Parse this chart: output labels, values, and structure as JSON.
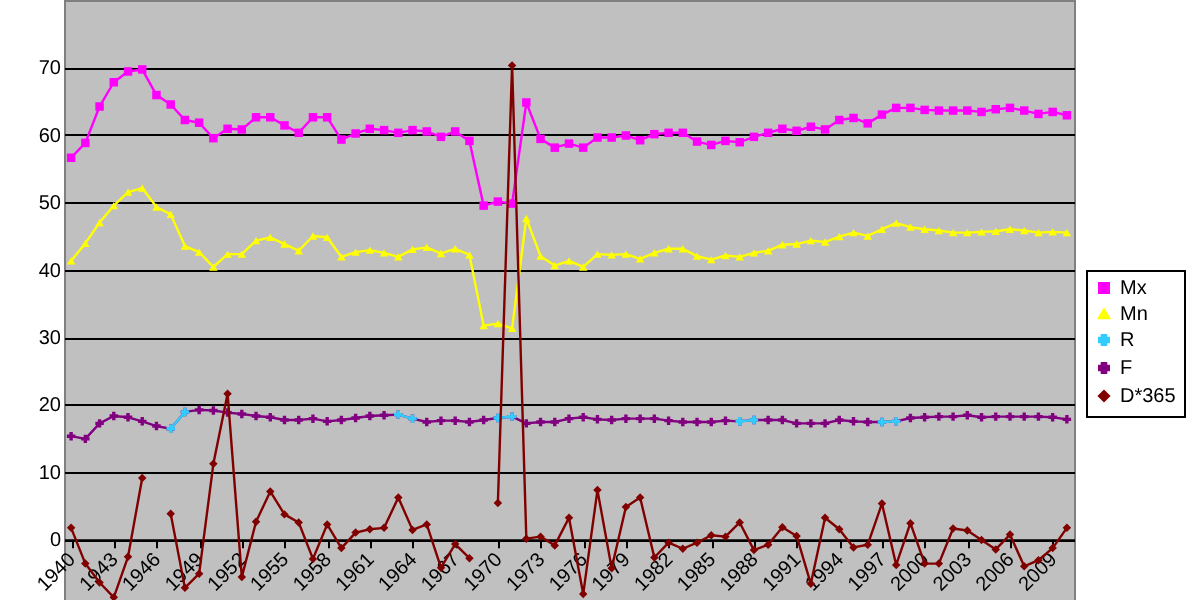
{
  "chart_data": {
    "type": "line",
    "x": [
      1940,
      1941,
      1942,
      1943,
      1944,
      1945,
      1946,
      1947,
      1948,
      1949,
      1950,
      1951,
      1952,
      1953,
      1954,
      1955,
      1956,
      1957,
      1958,
      1959,
      1960,
      1961,
      1962,
      1963,
      1964,
      1965,
      1966,
      1967,
      1968,
      1969,
      1970,
      1971,
      1972,
      1973,
      1974,
      1975,
      1976,
      1977,
      1978,
      1979,
      1980,
      1981,
      1982,
      1983,
      1984,
      1985,
      1986,
      1987,
      1988,
      1989,
      1990,
      1991,
      1992,
      1993,
      1994,
      1995,
      1996,
      1997,
      1998,
      1999,
      2000,
      2001,
      2002,
      2003,
      2004,
      2005,
      2006,
      2007,
      2008,
      2009,
      2010
    ],
    "series": [
      {
        "name": "Mx",
        "color": "#ff00ff",
        "marker": "square",
        "values": [
          56.6,
          58.8,
          64.2,
          67.8,
          69.4,
          69.7,
          65.9,
          64.5,
          62.2,
          61.8,
          59.5,
          60.9,
          60.8,
          62.6,
          62.6,
          61.4,
          60.3,
          62.6,
          62.6,
          59.3,
          60.2,
          60.9,
          60.7,
          60.3,
          60.7,
          60.5,
          59.7,
          60.5,
          59.1,
          49.5,
          50.1,
          49.8,
          64.8,
          59.4,
          58.1,
          58.7,
          58.1,
          59.6,
          59.6,
          59.9,
          59.2,
          60.1,
          60.3,
          60.3,
          59.0,
          58.5,
          59.1,
          58.9,
          59.7,
          60.3,
          60.9,
          60.6,
          61.2,
          60.8,
          62.2,
          62.5,
          61.7,
          63.0,
          64.0,
          64.0,
          63.7,
          63.6,
          63.6,
          63.6,
          63.4,
          63.8,
          64.0,
          63.6,
          63.1,
          63.4,
          62.9
        ]
      },
      {
        "name": "Mn",
        "color": "#ffff00",
        "marker": "triangle",
        "values": [
          41.3,
          43.9,
          47.0,
          49.5,
          51.5,
          52.1,
          49.3,
          48.2,
          43.5,
          42.6,
          40.4,
          42.3,
          42.3,
          44.3,
          44.8,
          43.8,
          42.8,
          45.0,
          44.8,
          41.9,
          42.6,
          42.9,
          42.5,
          41.9,
          43.0,
          43.3,
          42.4,
          43.1,
          42.2,
          31.7,
          32.0,
          31.3,
          47.6,
          42.0,
          40.6,
          41.3,
          40.4,
          42.3,
          42.2,
          42.3,
          41.6,
          42.5,
          43.1,
          43.1,
          42.0,
          41.5,
          42.1,
          41.9,
          42.5,
          42.8,
          43.7,
          43.8,
          44.3,
          44.1,
          44.9,
          45.5,
          45.0,
          46.0,
          46.9,
          46.3,
          46.0,
          45.8,
          45.5,
          45.5,
          45.6,
          45.7,
          46.0,
          45.8,
          45.5,
          45.6,
          45.5
        ]
      },
      {
        "name": "R",
        "color": "#33ccff",
        "marker": "cross",
        "values": [
          null,
          null,
          null,
          null,
          null,
          null,
          null,
          16.4,
          18.9,
          null,
          null,
          null,
          null,
          null,
          null,
          null,
          null,
          null,
          null,
          null,
          null,
          null,
          null,
          18.5,
          17.9,
          null,
          null,
          null,
          null,
          null,
          18.0,
          18.2,
          null,
          null,
          null,
          null,
          null,
          null,
          null,
          null,
          null,
          null,
          null,
          null,
          null,
          null,
          null,
          17.5,
          17.7,
          null,
          null,
          null,
          null,
          null,
          null,
          null,
          null,
          17.4,
          17.5,
          null,
          null,
          null,
          null,
          null,
          null,
          null,
          null,
          null,
          null,
          null,
          null
        ]
      },
      {
        "name": "F",
        "color": "#800080",
        "marker": "cross",
        "values": [
          15.3,
          14.9,
          17.2,
          18.3,
          18.1,
          17.5,
          16.8,
          16.4,
          18.9,
          19.2,
          19.1,
          18.8,
          18.6,
          18.3,
          18.1,
          17.7,
          17.7,
          17.9,
          17.5,
          17.7,
          18.0,
          18.3,
          18.4,
          18.5,
          17.9,
          17.4,
          17.6,
          17.6,
          17.4,
          17.7,
          18.0,
          18.2,
          17.2,
          17.4,
          17.4,
          17.9,
          18.1,
          17.8,
          17.7,
          17.9,
          17.9,
          17.9,
          17.6,
          17.4,
          17.4,
          17.4,
          17.6,
          17.5,
          17.7,
          17.7,
          17.7,
          17.2,
          17.2,
          17.2,
          17.7,
          17.5,
          17.4,
          17.4,
          17.5,
          18.0,
          18.1,
          18.2,
          18.2,
          18.4,
          18.1,
          18.2,
          18.2,
          18.2,
          18.2,
          18.1,
          17.8
        ]
      },
      {
        "name": "D*365",
        "color": "#800000",
        "marker": "diamond",
        "values": [
          1.7,
          -3.6,
          -6.4,
          -8.6,
          -2.6,
          9.1,
          null,
          3.8,
          -7.2,
          -5.1,
          11.2,
          21.6,
          -5.6,
          2.6,
          7.1,
          3.7,
          2.5,
          -2.9,
          2.2,
          -1.3,
          1.0,
          1.5,
          1.7,
          6.2,
          1.4,
          2.2,
          -4.2,
          -0.7,
          -2.8,
          null,
          5.4,
          70.3,
          0.1,
          0.4,
          -0.9,
          3.2,
          -8.1,
          7.3,
          -4.3,
          4.8,
          6.2,
          -2.7,
          -0.5,
          -1.4,
          -0.5,
          0.6,
          0.4,
          2.5,
          -1.6,
          -0.8,
          1.8,
          0.5,
          -6.6,
          3.2,
          1.5,
          -1.2,
          -0.8,
          5.3,
          -3.8,
          2.4,
          -3.6,
          -3.6,
          1.6,
          1.3,
          -0.1,
          -1.5,
          0.7,
          -4.0,
          -3.1,
          -1.3,
          1.7
        ]
      }
    ],
    "xlim": [
      1939.5,
      2010.5
    ],
    "xticks": [
      1940,
      1943,
      1946,
      1949,
      1952,
      1955,
      1958,
      1961,
      1964,
      1967,
      1970,
      1973,
      1976,
      1979,
      1982,
      1985,
      1988,
      1991,
      1994,
      1997,
      2000,
      2003,
      2006,
      2009
    ],
    "ylim": [
      -9,
      80
    ],
    "yticks": [
      0,
      10,
      20,
      30,
      40,
      50,
      60,
      70
    ],
    "grid": "y",
    "legend": "right"
  }
}
